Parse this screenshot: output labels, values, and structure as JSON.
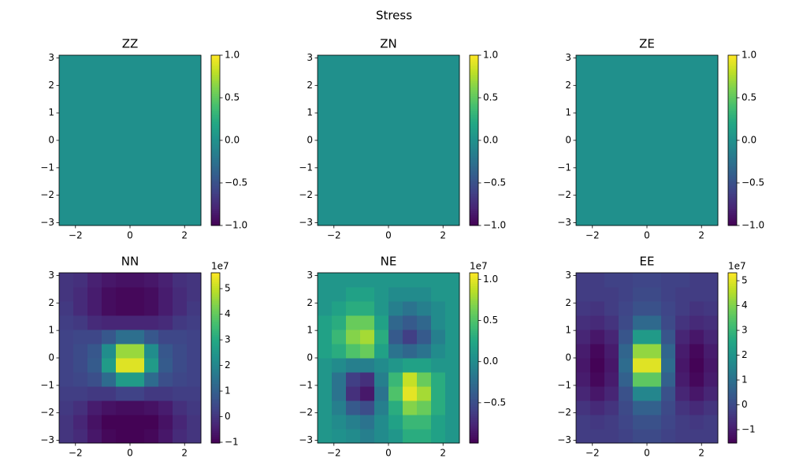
{
  "suptitle": "Stress",
  "chart_data": [
    {
      "type": "heatmap",
      "title": "ZZ",
      "colormap": "viridis",
      "xbins": [
        -2.6,
        2.6
      ],
      "ybins": [
        -3.1,
        3.1
      ],
      "z": [
        [
          0
        ]
      ],
      "xlim": [
        -2.6,
        2.6
      ],
      "ylim": [
        -3.1,
        3.1
      ],
      "xticks": [
        {
          "value": -2,
          "label": "−2"
        },
        0,
        2
      ],
      "yticks": [
        {
          "value": -3,
          "label": "−3"
        },
        {
          "value": -2,
          "label": "−2"
        },
        {
          "value": -1,
          "label": "−1"
        },
        0,
        1,
        2,
        3
      ],
      "clim": [
        -1,
        1
      ],
      "cticks": [
        {
          "value": -1,
          "label": "−1.0"
        },
        {
          "value": -0.5,
          "label": "−0.5"
        },
        {
          "value": 0,
          "label": "0.0"
        },
        0.5,
        {
          "value": 1,
          "label": "1.0"
        }
      ]
    },
    {
      "type": "heatmap",
      "title": "ZN",
      "colormap": "viridis",
      "xbins": [
        -2.6,
        2.6
      ],
      "ybins": [
        -3.1,
        3.1
      ],
      "z": [
        [
          0
        ]
      ],
      "xlim": [
        -2.6,
        2.6
      ],
      "ylim": [
        -3.1,
        3.1
      ],
      "xticks": [
        {
          "value": -2,
          "label": "−2"
        },
        0,
        2
      ],
      "yticks": [
        {
          "value": -3,
          "label": "−3"
        },
        {
          "value": -2,
          "label": "−2"
        },
        {
          "value": -1,
          "label": "−1"
        },
        0,
        1,
        2,
        3
      ],
      "clim": [
        -1,
        1
      ],
      "cticks": [
        {
          "value": -1,
          "label": "−1.0"
        },
        {
          "value": -0.5,
          "label": "−0.5"
        },
        {
          "value": 0,
          "label": "0.0"
        },
        0.5,
        {
          "value": 1,
          "label": "1.0"
        }
      ]
    },
    {
      "type": "heatmap",
      "title": "ZE",
      "colormap": "viridis",
      "xbins": [
        -2.6,
        2.6
      ],
      "ybins": [
        -3.1,
        3.1
      ],
      "z": [
        [
          0
        ]
      ],
      "xlim": [
        -2.6,
        2.6
      ],
      "ylim": [
        -3.1,
        3.1
      ],
      "xticks": [
        {
          "value": -2,
          "label": "−2"
        },
        0,
        2
      ],
      "yticks": [
        {
          "value": -3,
          "label": "−3"
        },
        {
          "value": -2,
          "label": "−2"
        },
        {
          "value": -1,
          "label": "−1"
        },
        0,
        1,
        2,
        3
      ],
      "clim": [
        -1,
        1
      ],
      "cticks": [
        {
          "value": -1,
          "label": "−1.0"
        },
        {
          "value": -0.5,
          "label": "−0.5"
        },
        {
          "value": 0,
          "label": "0.0"
        },
        0.5,
        {
          "value": 1,
          "label": "1.0"
        }
      ]
    },
    {
      "type": "heatmap",
      "title": "NN",
      "colormap": "viridis",
      "offset_label": "1e7",
      "xbins": [
        -2.6,
        -2.08,
        -1.56,
        -1.04,
        -0.52,
        0,
        0.52,
        1.04,
        1.56,
        2.08,
        2.6
      ],
      "ybins": [
        -3.1,
        -2.58,
        -2.07,
        -1.55,
        -1.03,
        -0.52,
        0,
        0.52,
        1.03,
        1.55,
        2.07,
        2.58,
        3.1
      ],
      "z": [
        [
          0,
          -0.2,
          -0.6,
          -0.9,
          -1.0,
          -1.0,
          -0.9,
          -0.6,
          -0.2,
          0
        ],
        [
          0,
          -0.3,
          -0.7,
          -1.0,
          -1.0,
          -1.0,
          -1.0,
          -0.7,
          -0.3,
          0
        ],
        [
          0.1,
          -0.1,
          -0.5,
          -0.7,
          -0.8,
          -0.8,
          -0.7,
          -0.5,
          -0.1,
          0.1
        ],
        [
          0.2,
          0.2,
          0.1,
          0.1,
          0.3,
          0.3,
          0.1,
          0.1,
          0.2,
          0.2
        ],
        [
          0.3,
          0.4,
          0.6,
          1.3,
          2.6,
          2.6,
          1.3,
          0.6,
          0.4,
          0.3
        ],
        [
          0.3,
          0.5,
          0.9,
          2.6,
          5.3,
          5.3,
          2.6,
          0.9,
          0.5,
          0.3
        ],
        [
          0.3,
          0.5,
          0.8,
          2.2,
          4.6,
          4.6,
          2.2,
          0.8,
          0.5,
          0.3
        ],
        [
          0.3,
          0.4,
          0.4,
          0.8,
          1.4,
          1.4,
          0.8,
          0.4,
          0.4,
          0.3
        ],
        [
          0.2,
          0.1,
          -0.2,
          -0.3,
          -0.3,
          -0.3,
          -0.3,
          -0.2,
          0.1,
          0.2
        ],
        [
          0.1,
          -0.2,
          -0.5,
          -0.8,
          -0.9,
          -0.9,
          -0.8,
          -0.5,
          -0.2,
          0.1
        ],
        [
          0,
          -0.2,
          -0.5,
          -0.8,
          -0.9,
          -0.9,
          -0.8,
          -0.5,
          -0.2,
          0
        ],
        [
          0,
          -0.1,
          -0.4,
          -0.6,
          -0.7,
          -0.7,
          -0.6,
          -0.4,
          -0.1,
          0
        ]
      ],
      "xlim": [
        -2.6,
        2.6
      ],
      "ylim": [
        -3.1,
        3.1
      ],
      "xticks": [
        {
          "value": -2,
          "label": "−2"
        },
        0,
        2
      ],
      "yticks": [
        {
          "value": -3,
          "label": "−3"
        },
        {
          "value": -2,
          "label": "−2"
        },
        {
          "value": -1,
          "label": "−1"
        },
        0,
        1,
        2,
        3
      ],
      "clim": [
        -1.03,
        5.62
      ],
      "cticks": [
        {
          "value": -1,
          "label": "−1"
        },
        0,
        1,
        2,
        3,
        4,
        5
      ]
    },
    {
      "type": "heatmap",
      "title": "NE",
      "colormap": "viridis",
      "offset_label": "1e7",
      "xbins": [
        -2.6,
        -2.08,
        -1.56,
        -1.04,
        -0.52,
        0,
        0.52,
        1.04,
        1.56,
        2.08,
        2.6
      ],
      "ybins": [
        -3.1,
        -2.58,
        -2.07,
        -1.55,
        -1.03,
        -0.52,
        0,
        0.52,
        1.03,
        1.55,
        2.07,
        2.58,
        3.1
      ],
      "z": [
        [
          0.1,
          0.05,
          0,
          -0.1,
          0,
          0.1,
          0.3,
          0.3,
          0.2,
          0.1
        ],
        [
          0.1,
          0,
          -0.1,
          -0.2,
          0,
          0.2,
          0.4,
          0.4,
          0.2,
          0.1
        ],
        [
          0.1,
          -0.1,
          -0.4,
          -0.5,
          -0.1,
          0.3,
          0.7,
          0.6,
          0.3,
          0.1
        ],
        [
          0.1,
          -0.2,
          -0.7,
          -0.85,
          -0.2,
          0.5,
          1.0,
          0.8,
          0.3,
          0.1
        ],
        [
          0.1,
          -0.2,
          -0.6,
          -0.7,
          -0.1,
          0.4,
          0.9,
          0.6,
          0.3,
          0.1
        ],
        [
          0.1,
          0,
          -0.1,
          -0.1,
          0,
          0.1,
          0.2,
          0.2,
          0.1,
          0.1
        ],
        [
          0.2,
          0.3,
          0.5,
          0.6,
          0.2,
          -0.2,
          -0.3,
          -0.2,
          0,
          0.1
        ],
        [
          0.2,
          0.4,
          0.7,
          0.8,
          0.3,
          -0.4,
          -0.6,
          -0.4,
          -0.1,
          0.1
        ],
        [
          0.2,
          0.3,
          0.6,
          0.6,
          0.2,
          -0.3,
          -0.4,
          -0.3,
          0,
          0.1
        ],
        [
          0.1,
          0.2,
          0.3,
          0.3,
          0.1,
          -0.1,
          -0.2,
          -0.1,
          0,
          0.1
        ],
        [
          0.1,
          0.1,
          0.2,
          0.2,
          0.1,
          0,
          0,
          0,
          0.1,
          0.1
        ],
        [
          0.1,
          0.1,
          0.1,
          0.1,
          0.1,
          0.1,
          0.1,
          0.1,
          0.1,
          0.1
        ]
      ],
      "xlim": [
        -2.6,
        2.6
      ],
      "ylim": [
        -3.1,
        3.1
      ],
      "xticks": [
        {
          "value": -2,
          "label": "−2"
        },
        0,
        2
      ],
      "yticks": [
        {
          "value": -3,
          "label": "−3"
        },
        {
          "value": -2,
          "label": "−2"
        },
        {
          "value": -1,
          "label": "−1"
        },
        0,
        1,
        2,
        3
      ],
      "clim": [
        -0.99,
        1.08
      ],
      "cticks": [
        {
          "value": -0.5,
          "label": "−0.5"
        },
        {
          "value": 0,
          "label": "0.0"
        },
        0.5,
        {
          "value": 1,
          "label": "1.0"
        }
      ]
    },
    {
      "type": "heatmap",
      "title": "EE",
      "colormap": "viridis",
      "offset_label": "1e7",
      "xbins": [
        -2.6,
        -2.08,
        -1.56,
        -1.04,
        -0.52,
        0,
        0.52,
        1.04,
        1.56,
        2.08,
        2.6
      ],
      "ybins": [
        -3.1,
        -2.58,
        -2.07,
        -1.55,
        -1.03,
        -0.52,
        0,
        0.52,
        1.03,
        1.55,
        2.07,
        2.58,
        3.1
      ],
      "z": [
        [
          -0.3,
          -0.3,
          -0.3,
          -0.2,
          0,
          0,
          -0.2,
          -0.3,
          -0.3,
          -0.3
        ],
        [
          -0.3,
          -0.4,
          -0.3,
          -0.1,
          0.2,
          0.2,
          -0.1,
          -0.3,
          -0.4,
          -0.3
        ],
        [
          -0.5,
          -0.7,
          -0.5,
          0,
          0.6,
          0.6,
          0,
          -0.5,
          -0.7,
          -0.5
        ],
        [
          -0.8,
          -1.1,
          -0.8,
          0.2,
          1.6,
          1.6,
          0.2,
          -0.8,
          -1.1,
          -0.8
        ],
        [
          -1.0,
          -1.4,
          -1.0,
          0.6,
          3.6,
          3.6,
          0.6,
          -1.0,
          -1.4,
          -1.0
        ],
        [
          -1.1,
          -1.5,
          -1.1,
          0.9,
          5.0,
          5.0,
          0.9,
          -1.1,
          -1.5,
          -1.1
        ],
        [
          -1.0,
          -1.4,
          -1.0,
          0.7,
          4.2,
          4.2,
          0.7,
          -1.0,
          -1.4,
          -1.0
        ],
        [
          -0.8,
          -1.1,
          -0.8,
          0.3,
          2.2,
          2.2,
          0.3,
          -0.8,
          -1.1,
          -0.8
        ],
        [
          -0.6,
          -0.7,
          -0.5,
          0,
          0.8,
          0.8,
          0,
          -0.5,
          -0.7,
          -0.6
        ],
        [
          -0.4,
          -0.5,
          -0.3,
          -0.1,
          0.2,
          0.2,
          -0.1,
          -0.3,
          -0.5,
          -0.4
        ],
        [
          -0.3,
          -0.3,
          -0.3,
          -0.2,
          0,
          0,
          -0.2,
          -0.3,
          -0.3,
          -0.3
        ],
        [
          -0.3,
          -0.3,
          -0.2,
          -0.2,
          -0.1,
          -0.1,
          -0.2,
          -0.2,
          -0.3,
          -0.3
        ]
      ],
      "xlim": [
        -2.6,
        2.6
      ],
      "ylim": [
        -3.1,
        3.1
      ],
      "xticks": [
        {
          "value": -2,
          "label": "−2"
        },
        0,
        2
      ],
      "yticks": [
        {
          "value": -3,
          "label": "−3"
        },
        {
          "value": -2,
          "label": "−2"
        },
        {
          "value": -1,
          "label": "−1"
        },
        0,
        1,
        2,
        3
      ],
      "clim": [
        -1.54,
        5.32
      ],
      "cticks": [
        {
          "value": -1,
          "label": "−1"
        },
        0,
        1,
        2,
        3,
        4,
        5
      ]
    }
  ]
}
